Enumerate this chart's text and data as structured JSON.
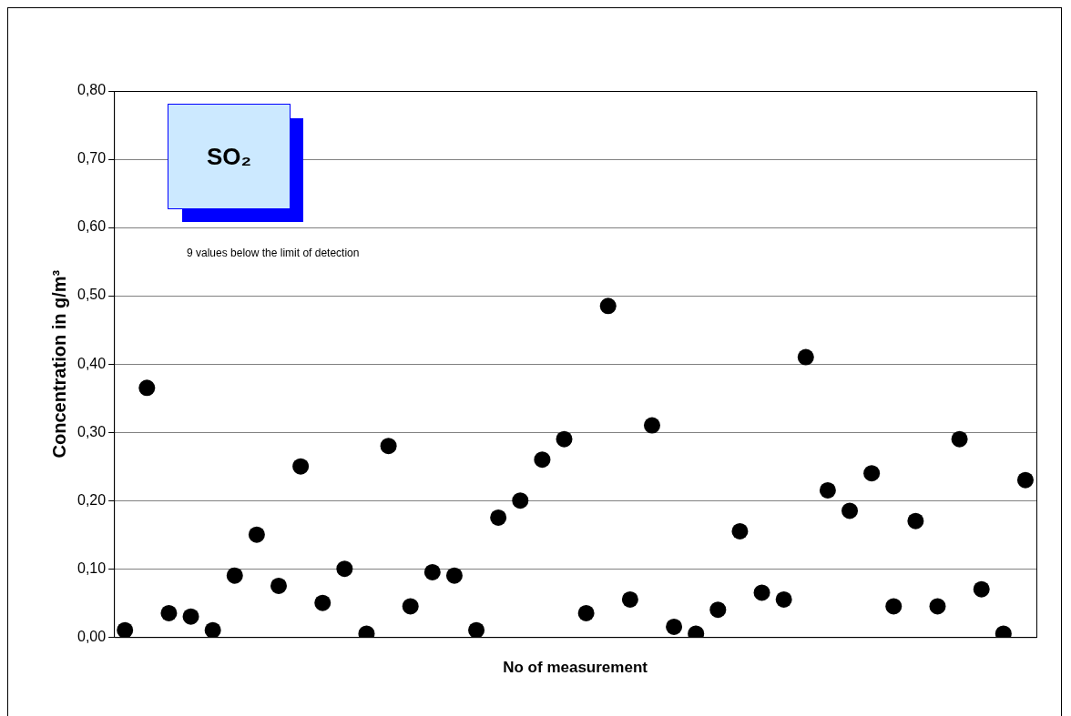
{
  "chart_data": {
    "type": "scatter",
    "xlabel": "No of measurement",
    "ylabel": "Concentration in g/m³",
    "annotations": [
      "SO₂",
      "9 values below the limit of detection"
    ],
    "categories": [
      null,
      null,
      null,
      null,
      null,
      null,
      null,
      null,
      null,
      null,
      null,
      null,
      null,
      null,
      null,
      null,
      null,
      null,
      null,
      null,
      null,
      null,
      null,
      null,
      null,
      null,
      null,
      null,
      null,
      null,
      null,
      null,
      null,
      null,
      null,
      null,
      null,
      null,
      null,
      null,
      null,
      null
    ],
    "series": [
      {
        "color": "#000000",
        "values": [
          0.01,
          0.365,
          0.035,
          0.03,
          0.01,
          0.09,
          0.15,
          0.075,
          0.25,
          0.05,
          0.1,
          0.005,
          0.28,
          0.045,
          0.095,
          0.09,
          0.01,
          0.175,
          0.2,
          0.26,
          0.29,
          0.035,
          0.485,
          0.055,
          0.31,
          0.015,
          0.005,
          0.04,
          0.155,
          0.065,
          0.055,
          0.41,
          0.215,
          0.185,
          0.24,
          0.045,
          0.17,
          0.045,
          0.29,
          0.07,
          0.005,
          0.23
        ]
      }
    ],
    "ylim": [
      0,
      0.8
    ],
    "yticks": [
      {
        "value": 0,
        "label": "0,00"
      },
      {
        "value": 0.1,
        "label": "0,10"
      },
      {
        "value": 0.2,
        "label": "0,20"
      },
      {
        "value": 0.3,
        "label": "0,30"
      },
      {
        "value": 0.4,
        "label": "0,40"
      },
      {
        "value": 0.5,
        "label": "0,50"
      },
      {
        "value": 0.6,
        "label": "0,60"
      },
      {
        "value": 0.7,
        "label": "0,70"
      },
      {
        "value": 0.8,
        "label": "0,80"
      }
    ],
    "grid": "y",
    "legend": false,
    "marker": "circle"
  }
}
